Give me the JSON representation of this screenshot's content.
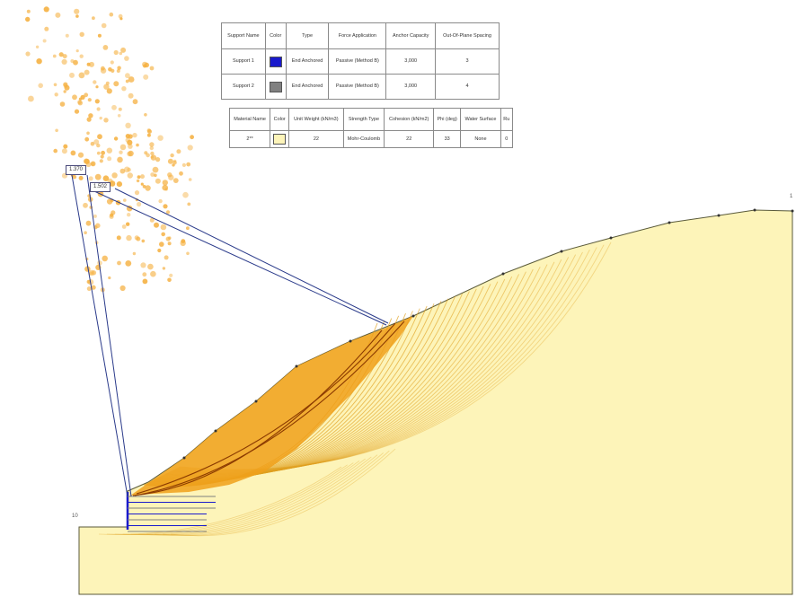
{
  "support_table": {
    "headers": [
      "Support Name",
      "Color",
      "Type",
      "Force Application",
      "Anchor Capacity",
      "Out-Of-Plane Spacing"
    ],
    "rows": [
      {
        "name": "Support 1",
        "color": "#1a1acc",
        "type": "End Anchored",
        "force": "Passive (Method B)",
        "capacity": "3,000",
        "spacing": "3"
      },
      {
        "name": "Support 2",
        "color": "#808080",
        "type": "End Anchored",
        "force": "Passive (Method B)",
        "capacity": "3,000",
        "spacing": "4"
      }
    ]
  },
  "material_table": {
    "headers": [
      "Material Name",
      "Color",
      "Unit Weight (kN/m3)",
      "Strength Type",
      "Cohesion (kN/m2)",
      "Phi (deg)",
      "Water Surface",
      "Ru"
    ],
    "rows": [
      {
        "name": "2**",
        "color": "#fdf4b9",
        "unit_weight": "22",
        "strength": "Mohr-Coulomb",
        "cohesion": "22",
        "phi": "33",
        "water": "None",
        "ru": "0"
      }
    ]
  },
  "fs_labels": [
    "1.370",
    "1.502"
  ],
  "corner_labels": {
    "right_top": "1",
    "left_bottom": "10"
  },
  "colors": {
    "slope_fill": "#fdf4b9",
    "critical_zone": "#f0a01a",
    "slip_surface": "#e0a020",
    "slip_critical": "#8b3a00",
    "support_blue": "#1a1acc",
    "support_gray": "#808080",
    "scatter_point": "#f5b040",
    "link_line": "#2a3a8a"
  }
}
